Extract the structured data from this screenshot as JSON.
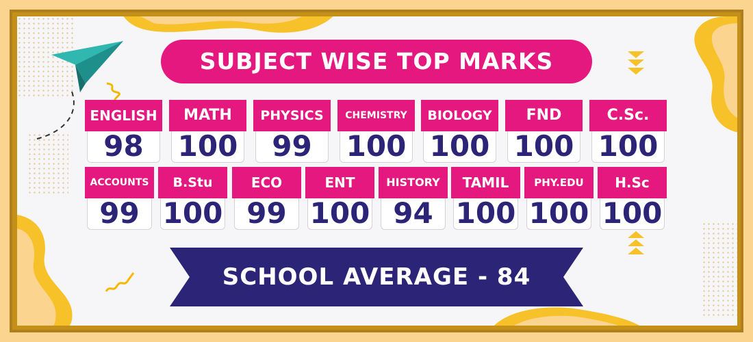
{
  "title": "SUBJECT WISE TOP MARKS",
  "rows": [
    [
      {
        "subject": "ENGLISH",
        "mark": "98"
      },
      {
        "subject": "MATH",
        "mark": "100"
      },
      {
        "subject": "PHYSICS",
        "mark": "99"
      },
      {
        "subject": "CHEMISTRY",
        "mark": "100"
      },
      {
        "subject": "BIOLOGY",
        "mark": "100"
      },
      {
        "subject": "FND",
        "mark": "100"
      },
      {
        "subject": "C.Sc.",
        "mark": "100"
      }
    ],
    [
      {
        "subject": "ACCOUNTS",
        "mark": "99"
      },
      {
        "subject": "B.Stu",
        "mark": "100"
      },
      {
        "subject": "ECO",
        "mark": "99"
      },
      {
        "subject": "ENT",
        "mark": "100"
      },
      {
        "subject": "HISTORY",
        "mark": "94"
      },
      {
        "subject": "TAMIL",
        "mark": "100"
      },
      {
        "subject": "PHY.EDU",
        "mark": "100"
      },
      {
        "subject": "H.Sc",
        "mark": "100"
      }
    ]
  ],
  "average_label": "SCHOOL AVERAGE - 84",
  "colors": {
    "pink": "#e5187f",
    "navy": "#2c2477",
    "orange": "#fbd48f",
    "yellow": "#f7c12a"
  },
  "decorations": [
    "paper-plane-icon",
    "squiggle-icon",
    "chevron-down-icon",
    "chevron-up-icon"
  ]
}
